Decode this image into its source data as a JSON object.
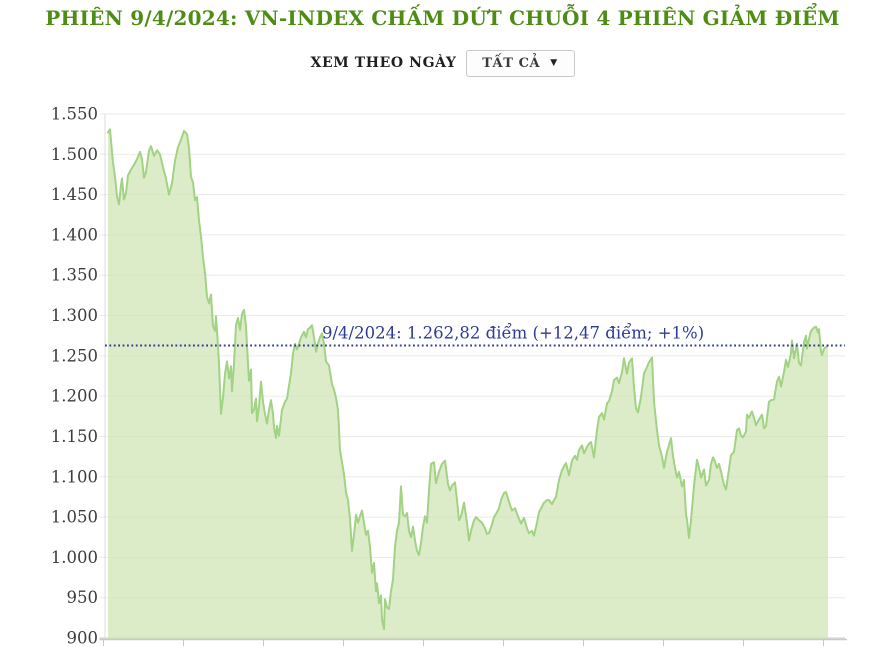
{
  "header": {
    "title": "PHIÊN 9/4/2024: VN-INDEX CHẤM DỨT CHUỖI 4 PHIÊN GIẢM ĐIỂM"
  },
  "controls": {
    "view_label": "XEM THEO NGÀY",
    "range_value": "TẤT CẢ",
    "dropdown_icon": "chevron-down"
  },
  "colors": {
    "title_green": "#4e8c15",
    "area_fill": "#cfe5b4",
    "area_line": "#a2d283",
    "reference_navy": "#2e3a96",
    "grid": "#eaeaea",
    "axis": "#c8c8c8",
    "tick_text": "#3c3c3c"
  },
  "chart_data": {
    "type": "area",
    "series_name": "VN-Index",
    "title": "PHIÊN 9/4/2024: VN-INDEX CHẤM DỨT CHUỖI 4 PHIÊN GIẢM ĐIỂM",
    "xlabel": "",
    "ylabel": "",
    "ylim": [
      900,
      1550
    ],
    "grid": "horizontal",
    "y_ticks": [
      1550,
      1500,
      1450,
      1400,
      1350,
      1300,
      1250,
      1200,
      1150,
      1100,
      1050,
      1000,
      950,
      900
    ],
    "y_tick_labels": [
      "1.550",
      "1.500",
      "1.450",
      "1.400",
      "1.350",
      "1.300",
      "1.250",
      "1.200",
      "1.150",
      "1.100",
      "1.050",
      "1.000",
      "950",
      "900"
    ],
    "x_axis": {
      "tick_count": 10,
      "labels_visible": false
    },
    "reference_line": {
      "value": 1262.82,
      "label": "9/4/2024: 1.262,82 điểm (+12,47 điểm; +1%)"
    },
    "end_value": 1262.82,
    "points": [
      [
        0,
        1527
      ],
      [
        2,
        1531
      ],
      [
        4,
        1503
      ],
      [
        5,
        1490
      ],
      [
        7,
        1472
      ],
      [
        9,
        1448
      ],
      [
        11,
        1438
      ],
      [
        13,
        1462
      ],
      [
        14,
        1470
      ],
      [
        16,
        1444
      ],
      [
        18,
        1452
      ],
      [
        20,
        1474
      ],
      [
        23,
        1481
      ],
      [
        26,
        1487
      ],
      [
        29,
        1494
      ],
      [
        32,
        1503
      ],
      [
        34,
        1494
      ],
      [
        36,
        1471
      ],
      [
        38,
        1478
      ],
      [
        41,
        1505
      ],
      [
        43,
        1510
      ],
      [
        46,
        1498
      ],
      [
        49,
        1505
      ],
      [
        52,
        1500
      ],
      [
        55,
        1484
      ],
      [
        58,
        1470
      ],
      [
        61,
        1450
      ],
      [
        64,
        1464
      ],
      [
        67,
        1492
      ],
      [
        70,
        1509
      ],
      [
        73,
        1518
      ],
      [
        76,
        1529
      ],
      [
        79,
        1525
      ],
      [
        81,
        1508
      ],
      [
        83,
        1472
      ],
      [
        85,
        1465
      ],
      [
        87,
        1443
      ],
      [
        89,
        1447
      ],
      [
        91,
        1418
      ],
      [
        93,
        1398
      ],
      [
        95,
        1372
      ],
      [
        97,
        1353
      ],
      [
        99,
        1323
      ],
      [
        101,
        1315
      ],
      [
        103,
        1326
      ],
      [
        105,
        1287
      ],
      [
        107,
        1281
      ],
      [
        108,
        1299
      ],
      [
        110,
        1263
      ],
      [
        111,
        1240
      ],
      [
        113,
        1178
      ],
      [
        115,
        1198
      ],
      [
        117,
        1228
      ],
      [
        119,
        1243
      ],
      [
        121,
        1222
      ],
      [
        123,
        1237
      ],
      [
        124,
        1206
      ],
      [
        126,
        1240
      ],
      [
        128,
        1288
      ],
      [
        130,
        1297
      ],
      [
        132,
        1282
      ],
      [
        134,
        1302
      ],
      [
        136,
        1307
      ],
      [
        138,
        1287
      ],
      [
        139,
        1263
      ],
      [
        141,
        1219
      ],
      [
        143,
        1233
      ],
      [
        144,
        1179
      ],
      [
        146,
        1183
      ],
      [
        148,
        1197
      ],
      [
        149,
        1169
      ],
      [
        151,
        1187
      ],
      [
        153,
        1218
      ],
      [
        155,
        1193
      ],
      [
        157,
        1178
      ],
      [
        159,
        1166
      ],
      [
        161,
        1183
      ],
      [
        163,
        1195
      ],
      [
        165,
        1178
      ],
      [
        166,
        1162
      ],
      [
        168,
        1148
      ],
      [
        169,
        1163
      ],
      [
        171,
        1151
      ],
      [
        174,
        1183
      ],
      [
        177,
        1193
      ],
      [
        179,
        1197
      ],
      [
        181,
        1213
      ],
      [
        183,
        1228
      ],
      [
        185,
        1253
      ],
      [
        187,
        1265
      ],
      [
        189,
        1258
      ],
      [
        191,
        1265
      ],
      [
        193,
        1273
      ],
      [
        196,
        1280
      ],
      [
        198,
        1273
      ],
      [
        200,
        1283
      ],
      [
        202,
        1285
      ],
      [
        204,
        1288
      ],
      [
        206,
        1273
      ],
      [
        208,
        1255
      ],
      [
        210,
        1265
      ],
      [
        212,
        1273
      ],
      [
        214,
        1278
      ],
      [
        216,
        1265
      ],
      [
        218,
        1243
      ],
      [
        221,
        1238
      ],
      [
        224,
        1215
      ],
      [
        226,
        1208
      ],
      [
        228,
        1198
      ],
      [
        230,
        1183
      ],
      [
        232,
        1133
      ],
      [
        234,
        1118
      ],
      [
        236,
        1103
      ],
      [
        238,
        1081
      ],
      [
        240,
        1071
      ],
      [
        242,
        1048
      ],
      [
        244,
        1008
      ],
      [
        246,
        1028
      ],
      [
        248,
        1053
      ],
      [
        250,
        1043
      ],
      [
        252,
        1051
      ],
      [
        254,
        1058
      ],
      [
        256,
        1043
      ],
      [
        258,
        1028
      ],
      [
        260,
        1033
      ],
      [
        262,
        1013
      ],
      [
        264,
        981
      ],
      [
        266,
        993
      ],
      [
        268,
        958
      ],
      [
        269,
        968
      ],
      [
        271,
        943
      ],
      [
        273,
        953
      ],
      [
        274,
        923
      ],
      [
        276,
        911
      ],
      [
        277,
        948
      ],
      [
        279,
        938
      ],
      [
        281,
        936
      ],
      [
        283,
        958
      ],
      [
        285,
        973
      ],
      [
        287,
        1013
      ],
      [
        289,
        1033
      ],
      [
        291,
        1043
      ],
      [
        293,
        1088
      ],
      [
        295,
        1053
      ],
      [
        297,
        1051
      ],
      [
        299,
        1055
      ],
      [
        301,
        1033
      ],
      [
        303,
        1025
      ],
      [
        305,
        1038
      ],
      [
        307,
        1021
      ],
      [
        309,
        1008
      ],
      [
        311,
        1003
      ],
      [
        313,
        1018
      ],
      [
        315,
        1038
      ],
      [
        317,
        1051
      ],
      [
        319,
        1043
      ],
      [
        321,
        1083
      ],
      [
        323,
        1116
      ],
      [
        326,
        1118
      ],
      [
        328,
        1092
      ],
      [
        331,
        1106
      ],
      [
        334,
        1116
      ],
      [
        337,
        1120
      ],
      [
        340,
        1091
      ],
      [
        342,
        1083
      ],
      [
        344,
        1089
      ],
      [
        347,
        1093
      ],
      [
        349,
        1071
      ],
      [
        351,
        1046
      ],
      [
        353,
        1051
      ],
      [
        356,
        1068
      ],
      [
        359,
        1043
      ],
      [
        361,
        1021
      ],
      [
        363,
        1033
      ],
      [
        366,
        1046
      ],
      [
        368,
        1050
      ],
      [
        371,
        1046
      ],
      [
        374,
        1043
      ],
      [
        377,
        1036
      ],
      [
        379,
        1029
      ],
      [
        381,
        1030
      ],
      [
        384,
        1041
      ],
      [
        386,
        1050
      ],
      [
        389,
        1056
      ],
      [
        391,
        1061
      ],
      [
        393,
        1071
      ],
      [
        396,
        1080
      ],
      [
        398,
        1081
      ],
      [
        401,
        1069
      ],
      [
        404,
        1058
      ],
      [
        407,
        1061
      ],
      [
        410,
        1051
      ],
      [
        413,
        1042
      ],
      [
        416,
        1049
      ],
      [
        419,
        1036
      ],
      [
        421,
        1030
      ],
      [
        424,
        1033
      ],
      [
        426,
        1027
      ],
      [
        429,
        1043
      ],
      [
        431,
        1056
      ],
      [
        434,
        1063
      ],
      [
        436,
        1068
      ],
      [
        439,
        1071
      ],
      [
        441,
        1071
      ],
      [
        444,
        1066
      ],
      [
        446,
        1071
      ],
      [
        448,
        1075
      ],
      [
        451,
        1096
      ],
      [
        454,
        1108
      ],
      [
        456,
        1113
      ],
      [
        458,
        1117
      ],
      [
        461,
        1102
      ],
      [
        464,
        1120
      ],
      [
        467,
        1126
      ],
      [
        469,
        1121
      ],
      [
        471,
        1133
      ],
      [
        474,
        1139
      ],
      [
        476,
        1129
      ],
      [
        479,
        1137
      ],
      [
        481,
        1141
      ],
      [
        483,
        1143
      ],
      [
        486,
        1124
      ],
      [
        489,
        1158
      ],
      [
        491,
        1174
      ],
      [
        494,
        1179
      ],
      [
        496,
        1171
      ],
      [
        499,
        1191
      ],
      [
        501,
        1194
      ],
      [
        504,
        1206
      ],
      [
        506,
        1220
      ],
      [
        509,
        1223
      ],
      [
        511,
        1216
      ],
      [
        514,
        1230
      ],
      [
        516,
        1247
      ],
      [
        519,
        1228
      ],
      [
        521,
        1242
      ],
      [
        524,
        1247
      ],
      [
        526,
        1211
      ],
      [
        528,
        1185
      ],
      [
        530,
        1180
      ],
      [
        533,
        1199
      ],
      [
        536,
        1228
      ],
      [
        539,
        1236
      ],
      [
        541,
        1242
      ],
      [
        544,
        1248
      ],
      [
        546,
        1193
      ],
      [
        549,
        1158
      ],
      [
        551,
        1139
      ],
      [
        554,
        1125
      ],
      [
        556,
        1111
      ],
      [
        559,
        1131
      ],
      [
        561,
        1139
      ],
      [
        563,
        1148
      ],
      [
        565,
        1126
      ],
      [
        567,
        1111
      ],
      [
        569,
        1099
      ],
      [
        571,
        1106
      ],
      [
        574,
        1088
      ],
      [
        576,
        1096
      ],
      [
        578,
        1053
      ],
      [
        579,
        1047
      ],
      [
        581,
        1024
      ],
      [
        583,
        1046
      ],
      [
        586,
        1089
      ],
      [
        589,
        1121
      ],
      [
        591,
        1111
      ],
      [
        593,
        1099
      ],
      [
        596,
        1109
      ],
      [
        598,
        1089
      ],
      [
        601,
        1096
      ],
      [
        603,
        1116
      ],
      [
        605,
        1124
      ],
      [
        607,
        1119
      ],
      [
        609,
        1111
      ],
      [
        611,
        1116
      ],
      [
        613,
        1106
      ],
      [
        616,
        1090
      ],
      [
        618,
        1084
      ],
      [
        620,
        1101
      ],
      [
        623,
        1127
      ],
      [
        626,
        1131
      ],
      [
        629,
        1158
      ],
      [
        631,
        1160
      ],
      [
        633,
        1151
      ],
      [
        635,
        1149
      ],
      [
        638,
        1156
      ],
      [
        639,
        1177
      ],
      [
        641,
        1173
      ],
      [
        643,
        1179
      ],
      [
        644,
        1181
      ],
      [
        646,
        1173
      ],
      [
        648,
        1164
      ],
      [
        651,
        1171
      ],
      [
        654,
        1177
      ],
      [
        656,
        1160
      ],
      [
        658,
        1163
      ],
      [
        661,
        1193
      ],
      [
        663,
        1195
      ],
      [
        666,
        1196
      ],
      [
        669,
        1218
      ],
      [
        671,
        1224
      ],
      [
        673,
        1212
      ],
      [
        676,
        1230
      ],
      [
        678,
        1245
      ],
      [
        680,
        1236
      ],
      [
        683,
        1253
      ],
      [
        684,
        1269
      ],
      [
        686,
        1247
      ],
      [
        689,
        1265
      ],
      [
        691,
        1241
      ],
      [
        693,
        1238
      ],
      [
        696,
        1267
      ],
      [
        698,
        1275
      ],
      [
        699,
        1259
      ],
      [
        701,
        1271
      ],
      [
        703,
        1281
      ],
      [
        706,
        1285
      ],
      [
        708,
        1286
      ],
      [
        710,
        1279
      ],
      [
        711,
        1283
      ],
      [
        713,
        1255
      ],
      [
        714,
        1251
      ],
      [
        716,
        1259
      ],
      [
        718,
        1261
      ],
      [
        720,
        1262.82
      ]
    ]
  }
}
